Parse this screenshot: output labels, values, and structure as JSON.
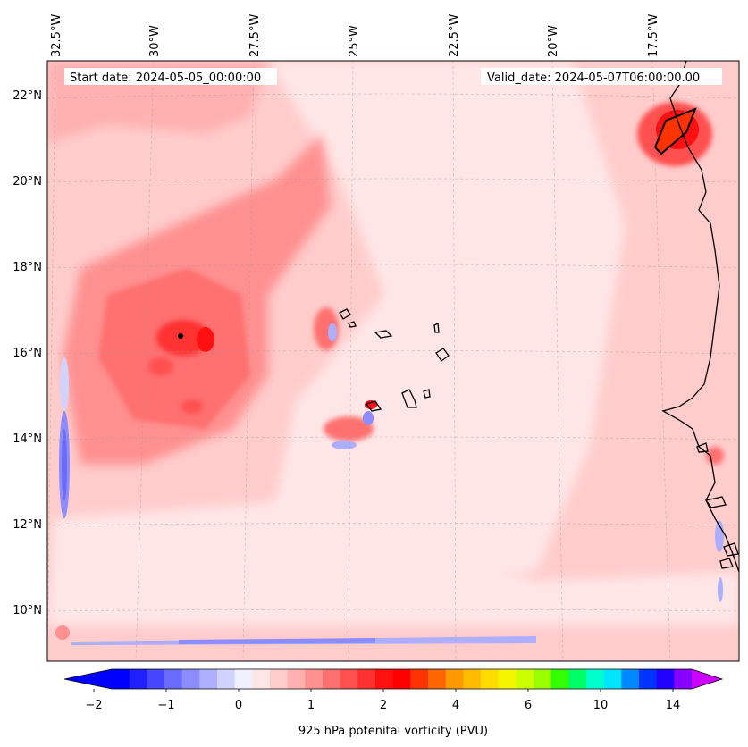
{
  "map": {
    "lon_labels": [
      "32.5°W",
      "30°W",
      "27.5°W",
      "25°W",
      "22.5°W",
      "20°W",
      "17.5°W"
    ],
    "lat_labels": [
      "22°N",
      "20°N",
      "18°N",
      "16°N",
      "14°N",
      "12°N",
      "10°N"
    ],
    "start_date": "Start date: 2024-05-05_00:00:00",
    "valid_date": "Valid_date: 2024-05-07T06:00:00.00"
  },
  "colorbar": {
    "label": "925 hPa potenital vorticity (PVU)",
    "tick_labels": [
      "−2",
      "−1",
      "0",
      "1",
      "2",
      "4",
      "6",
      "10",
      "14"
    ],
    "colors": [
      "#0000ff",
      "#2020ff",
      "#4646ff",
      "#6a6aff",
      "#8c8cff",
      "#aeaeff",
      "#d2d2ff",
      "#f0f0ff",
      "#ffe6e6",
      "#ffcccc",
      "#ffb0b0",
      "#ff9090",
      "#ff7070",
      "#ff5050",
      "#ff3030",
      "#ff1010",
      "#ff0000",
      "#ff3300",
      "#ff6600",
      "#ff9900",
      "#ffbb00",
      "#ffdd00",
      "#f5f500",
      "#ccff00",
      "#99ff00",
      "#33ff00",
      "#00ff66",
      "#00ffcc",
      "#00e5ff",
      "#0088ff",
      "#0033ff",
      "#2200ff",
      "#8800ff"
    ],
    "extend_low_color": "#0000ff",
    "extend_high_color": "#cc00ff"
  }
}
